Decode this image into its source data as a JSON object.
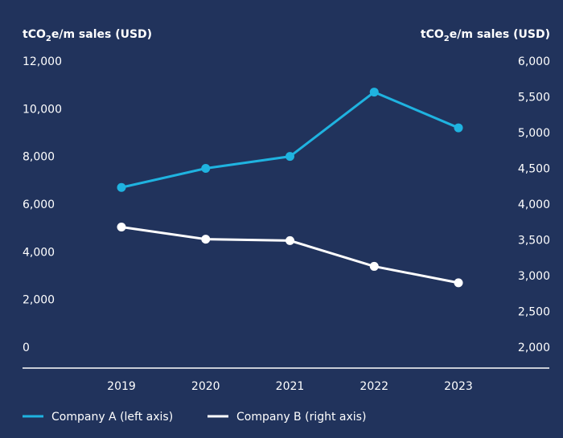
{
  "chart_data": {
    "type": "line",
    "categories": [
      "2019",
      "2020",
      "2021",
      "2022",
      "2023"
    ],
    "y_left": {
      "label_prefix": "tCO",
      "label_sub": "2",
      "label_suffix": "e/m sales (USD)",
      "range": [
        0,
        12000
      ],
      "ticks": [
        "12,000",
        "10,000",
        "8,000",
        "6,000",
        "4,000",
        "2,000",
        "0"
      ]
    },
    "y_right": {
      "label_prefix": "tCO",
      "label_sub": "2",
      "label_suffix": "e/m sales (USD)",
      "range": [
        2000,
        6000
      ],
      "ticks": [
        "6,000",
        "5,500",
        "5,000",
        "4,500",
        "4,000",
        "3,500",
        "3,000",
        "2,500",
        "2,000"
      ]
    },
    "series": [
      {
        "name": "Company A (left axis)",
        "axis": "left",
        "color": "#1fb3e0",
        "values": [
          6700,
          7500,
          8000,
          10700,
          9200
        ]
      },
      {
        "name": "Company B (right axis)",
        "axis": "right",
        "color": "#ffffff",
        "values": [
          3680,
          3510,
          3490,
          3130,
          2900
        ]
      }
    ],
    "grid": false,
    "legend": "bottom-left"
  }
}
